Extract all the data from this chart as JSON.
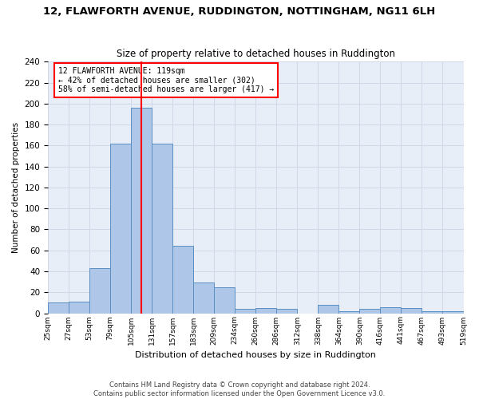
{
  "title": "12, FLAWFORTH AVENUE, RUDDINGTON, NOTTINGHAM, NG11 6LH",
  "subtitle": "Size of property relative to detached houses in Ruddington",
  "xlabel": "Distribution of detached houses by size in Ruddington",
  "ylabel": "Number of detached properties",
  "footer1": "Contains HM Land Registry data © Crown copyright and database right 2024.",
  "footer2": "Contains public sector information licensed under the Open Government Licence v3.0.",
  "bin_labels": [
    "25sqm",
    "27sqm",
    "53sqm",
    "79sqm",
    "105sqm",
    "131sqm",
    "157sqm",
    "183sqm",
    "209sqm",
    "234sqm",
    "260sqm",
    "286sqm",
    "312sqm",
    "338sqm",
    "364sqm",
    "390sqm",
    "416sqm",
    "441sqm",
    "467sqm",
    "493sqm",
    "519sqm"
  ],
  "bar_heights": [
    10,
    11,
    43,
    162,
    196,
    162,
    64,
    29,
    25,
    4,
    5,
    4,
    0,
    8,
    2,
    4,
    6,
    5,
    2,
    2
  ],
  "bar_color": "#aec6e8",
  "bar_edge_color": "#5a8fc2",
  "property_bin_index": 4,
  "vline_at_index": 4.5,
  "annotation_text": "12 FLAWFORTH AVENUE: 119sqm\n← 42% of detached houses are smaller (302)\n58% of semi-detached houses are larger (417) →",
  "ylim": [
    0,
    240
  ],
  "yticks": [
    0,
    20,
    40,
    60,
    80,
    100,
    120,
    140,
    160,
    180,
    200,
    220,
    240
  ],
  "grid_color": "#d0d8e8",
  "background_color": "#e8eef7",
  "title_fontsize": 9.5,
  "subtitle_fontsize": 8.5
}
